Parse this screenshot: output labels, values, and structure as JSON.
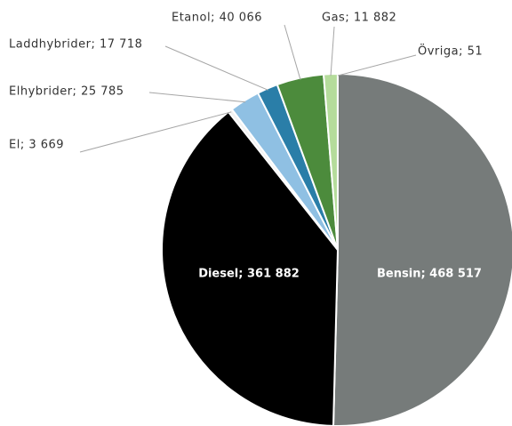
{
  "chart_data": {
    "type": "pie",
    "values": [
      468517,
      361882,
      3669,
      25785,
      17718,
      40066,
      11882,
      51
    ],
    "value_labels": [
      "Bensin; 468 517",
      "Diesel; 361 882",
      "El; 3 669",
      "Elhybrider; 25 785",
      "Laddhybrider; 17 718",
      "Etanol; 40 066",
      "Gas; 11 882",
      "Övriga; 51"
    ],
    "colors": [
      "#767b7a",
      "#000000",
      "#f2f2f2",
      "#8fc0e3",
      "#2a7ea8",
      "#4c8b3c",
      "#b5dc9b",
      "#ffffff"
    ]
  }
}
